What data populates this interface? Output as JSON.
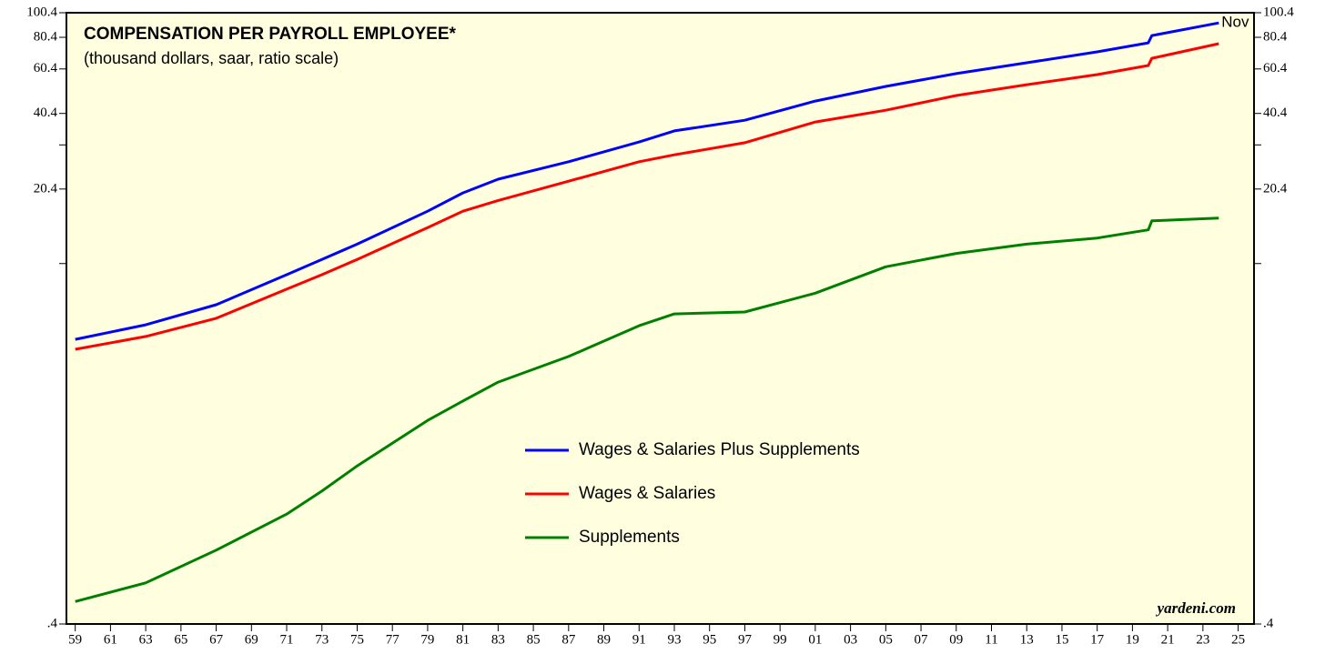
{
  "chart_data": {
    "type": "line",
    "title": "COMPENSATION PER PAYROLL EMPLOYEE*",
    "subtitle": "(thousand dollars, saar, ratio scale)",
    "annotations": {
      "last_point": "Nov",
      "source": "yardeni.com"
    },
    "log_scale": true,
    "legend": "center",
    "x": [
      1959,
      1963,
      1967,
      1971,
      1973,
      1975,
      1979,
      1981,
      1983,
      1987,
      1991,
      1993,
      1997,
      2001,
      2005,
      2009,
      2013,
      2017,
      2019.9,
      2020.1,
      2023.9
    ],
    "series": [
      {
        "name": "Wages & Salaries Plus Supplements",
        "color": "#0000ff",
        "values": [
          5.24,
          5.98,
          7.17,
          9.4,
          10.8,
          12.4,
          16.7,
          19.7,
          22.3,
          26.1,
          31.2,
          34.5,
          38.0,
          45.2,
          51.6,
          57.9,
          63.9,
          70.5,
          76.5,
          81.7,
          91.6
        ]
      },
      {
        "name": "Wages & Salaries",
        "color": "#ff0000",
        "values": [
          4.79,
          5.38,
          6.34,
          8.25,
          9.4,
          10.8,
          14.4,
          16.7,
          18.4,
          21.9,
          26.1,
          27.8,
          31.0,
          37.4,
          41.6,
          47.5,
          52.4,
          57.4,
          62.3,
          66.5,
          75.9
        ]
      },
      {
        "name": "Supplements",
        "color": "#008000",
        "values": [
          0.49,
          0.58,
          0.78,
          1.08,
          1.33,
          1.67,
          2.52,
          3.0,
          3.56,
          4.49,
          5.93,
          6.6,
          6.71,
          7.96,
          10.1,
          11.4,
          12.4,
          13.1,
          14.1,
          15.3,
          15.7
        ]
      }
    ],
    "xlim": [
      1958.5,
      2025.9
    ],
    "xticks": [
      {
        "value": 1959,
        "label": "59"
      },
      {
        "value": 1961,
        "label": "61"
      },
      {
        "value": 1963,
        "label": "63"
      },
      {
        "value": 1965,
        "label": "65"
      },
      {
        "value": 1967,
        "label": "67"
      },
      {
        "value": 1969,
        "label": "69"
      },
      {
        "value": 1971,
        "label": "71"
      },
      {
        "value": 1973,
        "label": "73"
      },
      {
        "value": 1975,
        "label": "75"
      },
      {
        "value": 1977,
        "label": "77"
      },
      {
        "value": 1979,
        "label": "79"
      },
      {
        "value": 1981,
        "label": "81"
      },
      {
        "value": 1983,
        "label": "83"
      },
      {
        "value": 1985,
        "label": "85"
      },
      {
        "value": 1987,
        "label": "87"
      },
      {
        "value": 1989,
        "label": "89"
      },
      {
        "value": 1991,
        "label": "91"
      },
      {
        "value": 1993,
        "label": "93"
      },
      {
        "value": 1995,
        "label": "95"
      },
      {
        "value": 1997,
        "label": "97"
      },
      {
        "value": 1999,
        "label": "99"
      },
      {
        "value": 2001,
        "label": "01"
      },
      {
        "value": 2003,
        "label": "03"
      },
      {
        "value": 2005,
        "label": "05"
      },
      {
        "value": 2007,
        "label": "07"
      },
      {
        "value": 2009,
        "label": "09"
      },
      {
        "value": 2011,
        "label": "11"
      },
      {
        "value": 2013,
        "label": "13"
      },
      {
        "value": 2015,
        "label": "15"
      },
      {
        "value": 2017,
        "label": "17"
      },
      {
        "value": 2019,
        "label": "19"
      },
      {
        "value": 2021,
        "label": "21"
      },
      {
        "value": 2023,
        "label": "23"
      },
      {
        "value": 2025,
        "label": "25"
      }
    ],
    "ylim": [
      0.4,
      100.4
    ],
    "yticks": [
      {
        "value": 0.4,
        "label": ".4"
      },
      20.4,
      40.4,
      60.4,
      80.4,
      100.4
    ],
    "minor_yticks": [
      10.4,
      30.4
    ],
    "background": "#ffffe0"
  }
}
